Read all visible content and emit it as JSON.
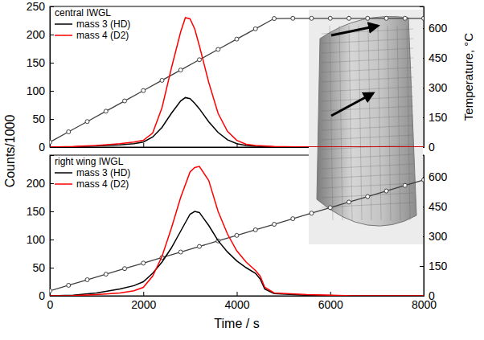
{
  "chart_data": [
    {
      "type": "line",
      "title": "central IWGL",
      "legend": "upper left",
      "tick_labels": "y",
      "ylabel": "Counts/1000",
      "y2label": "Temperature, °C",
      "xlim": [
        0,
        8000
      ],
      "xticks": [
        0,
        2000,
        4000,
        6000,
        8000
      ],
      "ylim": [
        0,
        250
      ],
      "yticks": [
        0,
        50,
        100,
        150,
        200,
        250
      ],
      "y2lim": [
        0,
        710
      ],
      "y2ticks": [
        0,
        150,
        300,
        450,
        600
      ],
      "x": [
        0,
        500,
        1000,
        1500,
        1800,
        2000,
        2200,
        2400,
        2600,
        2800,
        2900,
        3000,
        3100,
        3200,
        3400,
        3600,
        3800,
        4000,
        4200,
        4400,
        4800,
        5500,
        6500,
        8000
      ],
      "series": [
        {
          "name": "mass 3 (HD)",
          "color": "#000000",
          "values": [
            0,
            0.5,
            2,
            4,
            6,
            9,
            18,
            35,
            60,
            82,
            88,
            86,
            78,
            68,
            45,
            26,
            13,
            6,
            3,
            1.5,
            0.5,
            0,
            0,
            0
          ]
        },
        {
          "name": "mass 4 (D2)",
          "color": "#ff0000",
          "values": [
            0,
            1,
            3,
            6,
            9,
            12,
            25,
            70,
            140,
            205,
            230,
            228,
            210,
            180,
            115,
            60,
            28,
            12,
            5,
            3,
            1,
            0,
            0,
            0
          ]
        },
        {
          "axis": "y2",
          "color": "#404040",
          "marker": "circle",
          "x": [
            0,
            400,
            800,
            1200,
            1600,
            2000,
            2400,
            2800,
            3200,
            3600,
            4000,
            4400,
            4800,
            5200,
            5600,
            6000,
            6400,
            6800,
            7200,
            7600,
            8000
          ],
          "values": [
            25,
            77,
            129,
            181,
            233,
            285,
            337,
            389,
            441,
            493,
            545,
            597,
            649,
            650,
            650,
            650,
            650,
            650,
            650,
            650,
            650
          ]
        }
      ]
    },
    {
      "type": "line",
      "title": "right wing IWGL",
      "legend": "upper left",
      "xlabel": "Time / s",
      "xlim": [
        0,
        8000
      ],
      "xticks": [
        0,
        2000,
        4000,
        6000,
        8000
      ],
      "ylim": [
        0,
        250
      ],
      "yticks": [
        0,
        50,
        100,
        150,
        200
      ],
      "y2lim": [
        0,
        710
      ],
      "y2ticks": [
        0,
        150,
        300,
        450,
        600
      ],
      "x": [
        0,
        500,
        1000,
        1500,
        1800,
        2000,
        2200,
        2400,
        2600,
        2800,
        3000,
        3100,
        3200,
        3400,
        3600,
        3800,
        4000,
        4200,
        4400,
        4500,
        4600,
        4800,
        5500,
        6500,
        8000
      ],
      "series": [
        {
          "name": "mass 3 (HD)",
          "color": "#000000",
          "values": [
            0,
            1,
            5,
            12,
            18,
            25,
            40,
            60,
            85,
            115,
            145,
            150,
            148,
            125,
            98,
            78,
            62,
            50,
            40,
            30,
            12,
            4,
            1,
            0,
            0
          ]
        },
        {
          "name": "mass 4 (D2)",
          "color": "#ff0000",
          "values": [
            0,
            0.5,
            2,
            5,
            9,
            15,
            35,
            70,
            120,
            175,
            220,
            228,
            230,
            205,
            150,
            110,
            80,
            60,
            45,
            35,
            15,
            5,
            2,
            0,
            0
          ]
        },
        {
          "axis": "y2",
          "color": "#404040",
          "marker": "circle",
          "x": [
            0,
            400,
            800,
            1200,
            1600,
            2000,
            2400,
            2800,
            3200,
            3600,
            4000,
            4400,
            4800,
            5200,
            5600,
            6000,
            6400,
            6800,
            7200,
            7600,
            8000
          ],
          "values": [
            25,
            53,
            81,
            109,
            137,
            165,
            193,
            221,
            249,
            277,
            305,
            333,
            361,
            389,
            417,
            445,
            473,
            501,
            529,
            557,
            585
          ]
        }
      ]
    }
  ]
}
